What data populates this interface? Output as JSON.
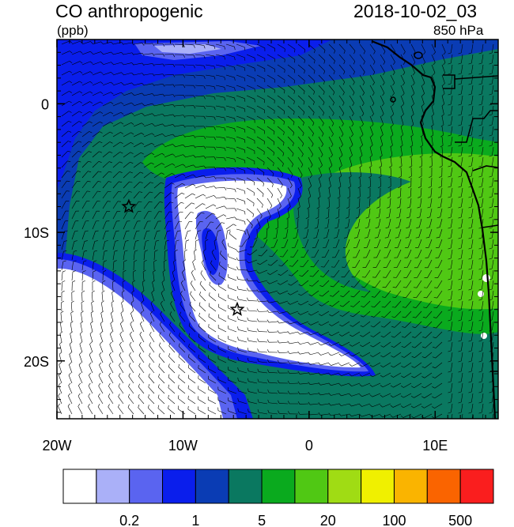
{
  "header": {
    "title": "CO anthropogenic",
    "units": "(ppb)",
    "datetime": "2018-10-02_03",
    "level": "850 hPa"
  },
  "axes": {
    "x_labels": [
      "20W",
      "10W",
      "0",
      "10E"
    ],
    "x_values": [
      -20,
      -10,
      0,
      10
    ],
    "y_labels": [
      "0",
      "10S",
      "20S"
    ],
    "y_values": [
      0,
      -10,
      -20
    ],
    "lon_range": [
      -20,
      15
    ],
    "lat_range": [
      -24.5,
      5
    ]
  },
  "colorbar": {
    "colors": [
      "#ffffff",
      "#aab0f8",
      "#5a64f0",
      "#0a1eec",
      "#0a3cb4",
      "#0a7860",
      "#0aaa1e",
      "#50c814",
      "#a0dc14",
      "#f0f000",
      "#fab400",
      "#fa6400",
      "#fa1e1e"
    ],
    "tick_labels": [
      "0.2",
      "1",
      "5",
      "20",
      "100",
      "500"
    ]
  },
  "markers": [
    {
      "name": "star-1",
      "lon": -14.3,
      "lat": -8
    },
    {
      "name": "star-2",
      "lon": -5.7,
      "lat": -16
    }
  ]
}
